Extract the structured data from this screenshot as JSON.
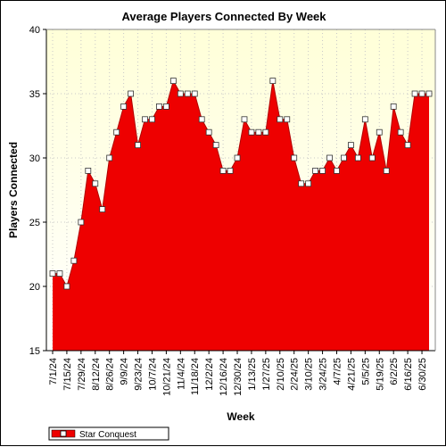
{
  "chart_data": {
    "type": "area",
    "title": "Average Players Connected By Week",
    "xlabel": "Week",
    "ylabel": "Players Connected",
    "ylim": [
      15,
      40
    ],
    "yticks": [
      15,
      20,
      25,
      30,
      35,
      40
    ],
    "grid": true,
    "legend_position": "bottom-left",
    "x_tick_labels": [
      "7/1/24",
      "7/15/24",
      "7/29/24",
      "8/12/24",
      "8/26/24",
      "9/9/24",
      "9/23/24",
      "10/7/24",
      "10/21/24",
      "11/4/24",
      "11/18/24",
      "12/2/24",
      "12/16/24",
      "12/30/24",
      "1/13/25",
      "1/27/25",
      "2/10/25",
      "2/24/25",
      "3/10/25",
      "3/24/25",
      "4/7/25",
      "4/21/25",
      "5/5/25",
      "5/19/25",
      "6/2/25",
      "6/16/25",
      "6/30/25"
    ],
    "x": [
      "7/1/24",
      "7/8/24",
      "7/15/24",
      "7/22/24",
      "7/29/24",
      "8/5/24",
      "8/12/24",
      "8/19/24",
      "8/26/24",
      "9/2/24",
      "9/9/24",
      "9/16/24",
      "9/23/24",
      "9/30/24",
      "10/7/24",
      "10/14/24",
      "10/21/24",
      "10/28/24",
      "11/4/24",
      "11/11/24",
      "11/18/24",
      "11/25/24",
      "12/2/24",
      "12/9/24",
      "12/16/24",
      "12/23/24",
      "12/30/24",
      "1/6/25",
      "1/13/25",
      "1/20/25",
      "1/27/25",
      "2/3/25",
      "2/10/25",
      "2/17/25",
      "2/24/25",
      "3/3/25",
      "3/10/25",
      "3/17/25",
      "3/24/25",
      "3/31/25",
      "4/7/25",
      "4/14/25",
      "4/21/25",
      "4/28/25",
      "5/5/25",
      "5/12/25",
      "5/19/25",
      "5/26/25",
      "6/2/25",
      "6/9/25",
      "6/16/25",
      "6/23/25",
      "6/30/25",
      "7/7/25"
    ],
    "series": [
      {
        "name": "Star Conquest",
        "color": "#ee0000",
        "values": [
          21,
          21,
          20,
          22,
          25,
          29,
          28,
          26,
          30,
          32,
          34,
          35,
          31,
          33,
          33,
          34,
          34,
          36,
          35,
          35,
          35,
          33,
          32,
          31,
          29,
          29,
          30,
          33,
          32,
          32,
          32,
          36,
          33,
          33,
          30,
          28,
          28,
          29,
          29,
          30,
          29,
          30,
          31,
          30,
          33,
          30,
          32,
          29,
          34,
          32,
          31,
          35,
          35,
          35
        ]
      }
    ]
  }
}
